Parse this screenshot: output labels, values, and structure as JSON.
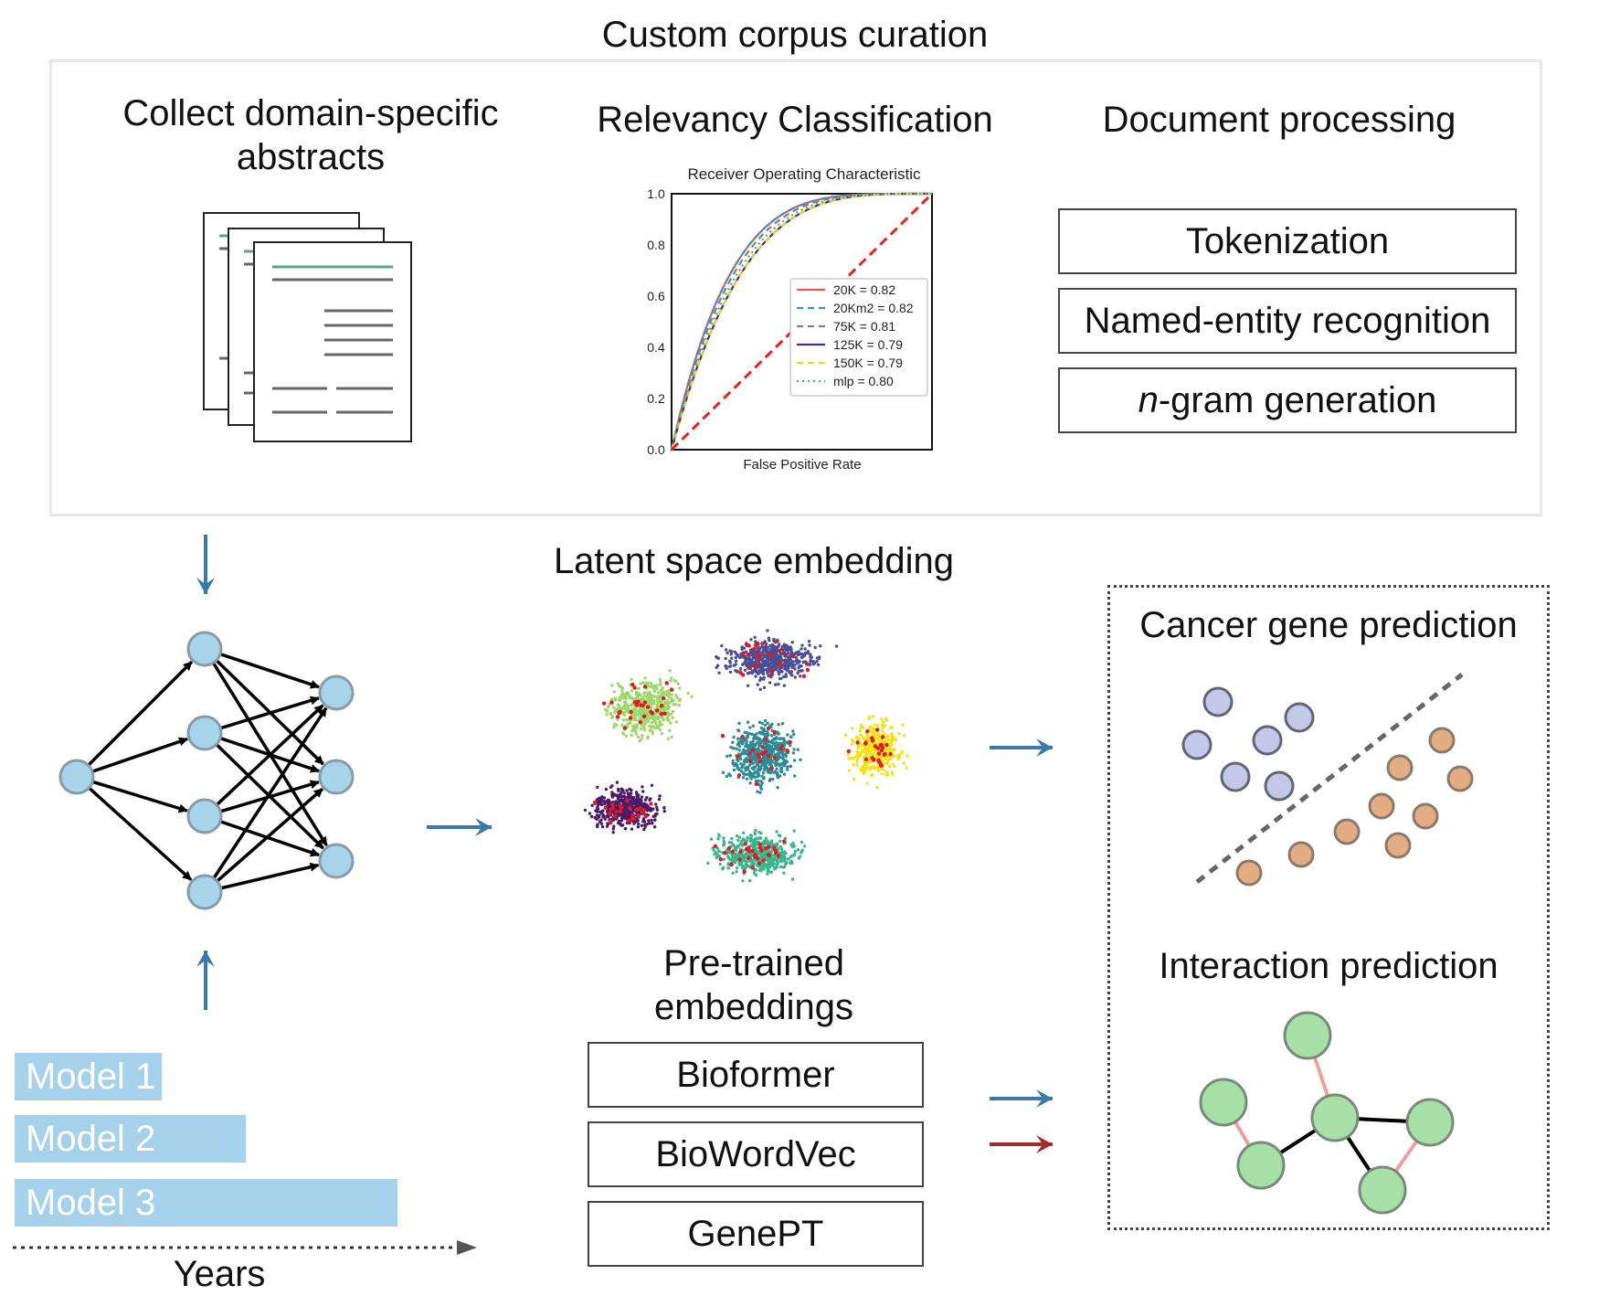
{
  "curation": {
    "title": "Custom corpus curation",
    "collect_title_line1": "Collect domain-specific",
    "collect_title_line2": "abstracts",
    "relevancy_title": "Relevancy Classification",
    "processing_title": "Document processing",
    "processing_steps": [
      "Tokenization",
      "Named-entity recognition",
      "-gram generation"
    ],
    "ngram_prefix": "n"
  },
  "chart_data": {
    "type": "line",
    "title": "Receiver Operating Characteristic",
    "xlabel": "False Positive Rate",
    "ylabel": "",
    "xlim": [
      0,
      1
    ],
    "ylim": [
      0,
      1
    ],
    "yticks": [
      "0.0",
      "0.2",
      "0.4",
      "0.6",
      "0.8",
      "1.0"
    ],
    "legend_position": "bottom-right",
    "series": [
      {
        "name": "20K = 0.82",
        "color": "#e05a4f",
        "dash": "solid",
        "auc": 0.82
      },
      {
        "name": "20Km2 = 0.82",
        "color": "#3a8fd6",
        "dash": "dashed",
        "auc": 0.82
      },
      {
        "name": "75K = 0.81",
        "color": "#7f7f7f",
        "dash": "dashed",
        "auc": 0.81
      },
      {
        "name": "125K = 0.79",
        "color": "#4b2a86",
        "dash": "solid",
        "auc": 0.79
      },
      {
        "name": "150K = 0.79",
        "color": "#f2d021",
        "dash": "dashed",
        "auc": 0.79
      },
      {
        "name": "mlp = 0.80",
        "color": "#3cb08f",
        "dash": "dotted",
        "auc": 0.8
      }
    ],
    "diagonal_color": "#e8231f"
  },
  "embedding": {
    "title": "Latent space embedding",
    "cluster_colors": [
      "#9ed86a",
      "#4a4f97",
      "#f4e21c",
      "#2d8c96",
      "#4e1b6a",
      "#3bb58c"
    ],
    "highlight_color": "#e01b24"
  },
  "pretrained": {
    "title_line1": "Pre-trained",
    "title_line2": "embeddings",
    "models": [
      "Bioformer",
      "BioWordVec",
      "GenePT"
    ]
  },
  "predictions": {
    "cancer_title": "Cancer gene prediction",
    "interaction_title": "Interaction prediction"
  },
  "timeline": {
    "models": [
      "Model 1",
      "Model 2",
      "Model 3"
    ],
    "model_progress": [
      0.35,
      0.55,
      0.91
    ],
    "axis_label": "Years"
  },
  "colors": {
    "arrow_blue": "#3a7aab",
    "arrow_red": "#a5282b",
    "node_blue": "#a7d4e8",
    "node_purple": "#c3c8e8",
    "node_orange": "#e3ad84",
    "node_green": "#a6e0a6",
    "edge_pink": "#ef9f9f"
  }
}
